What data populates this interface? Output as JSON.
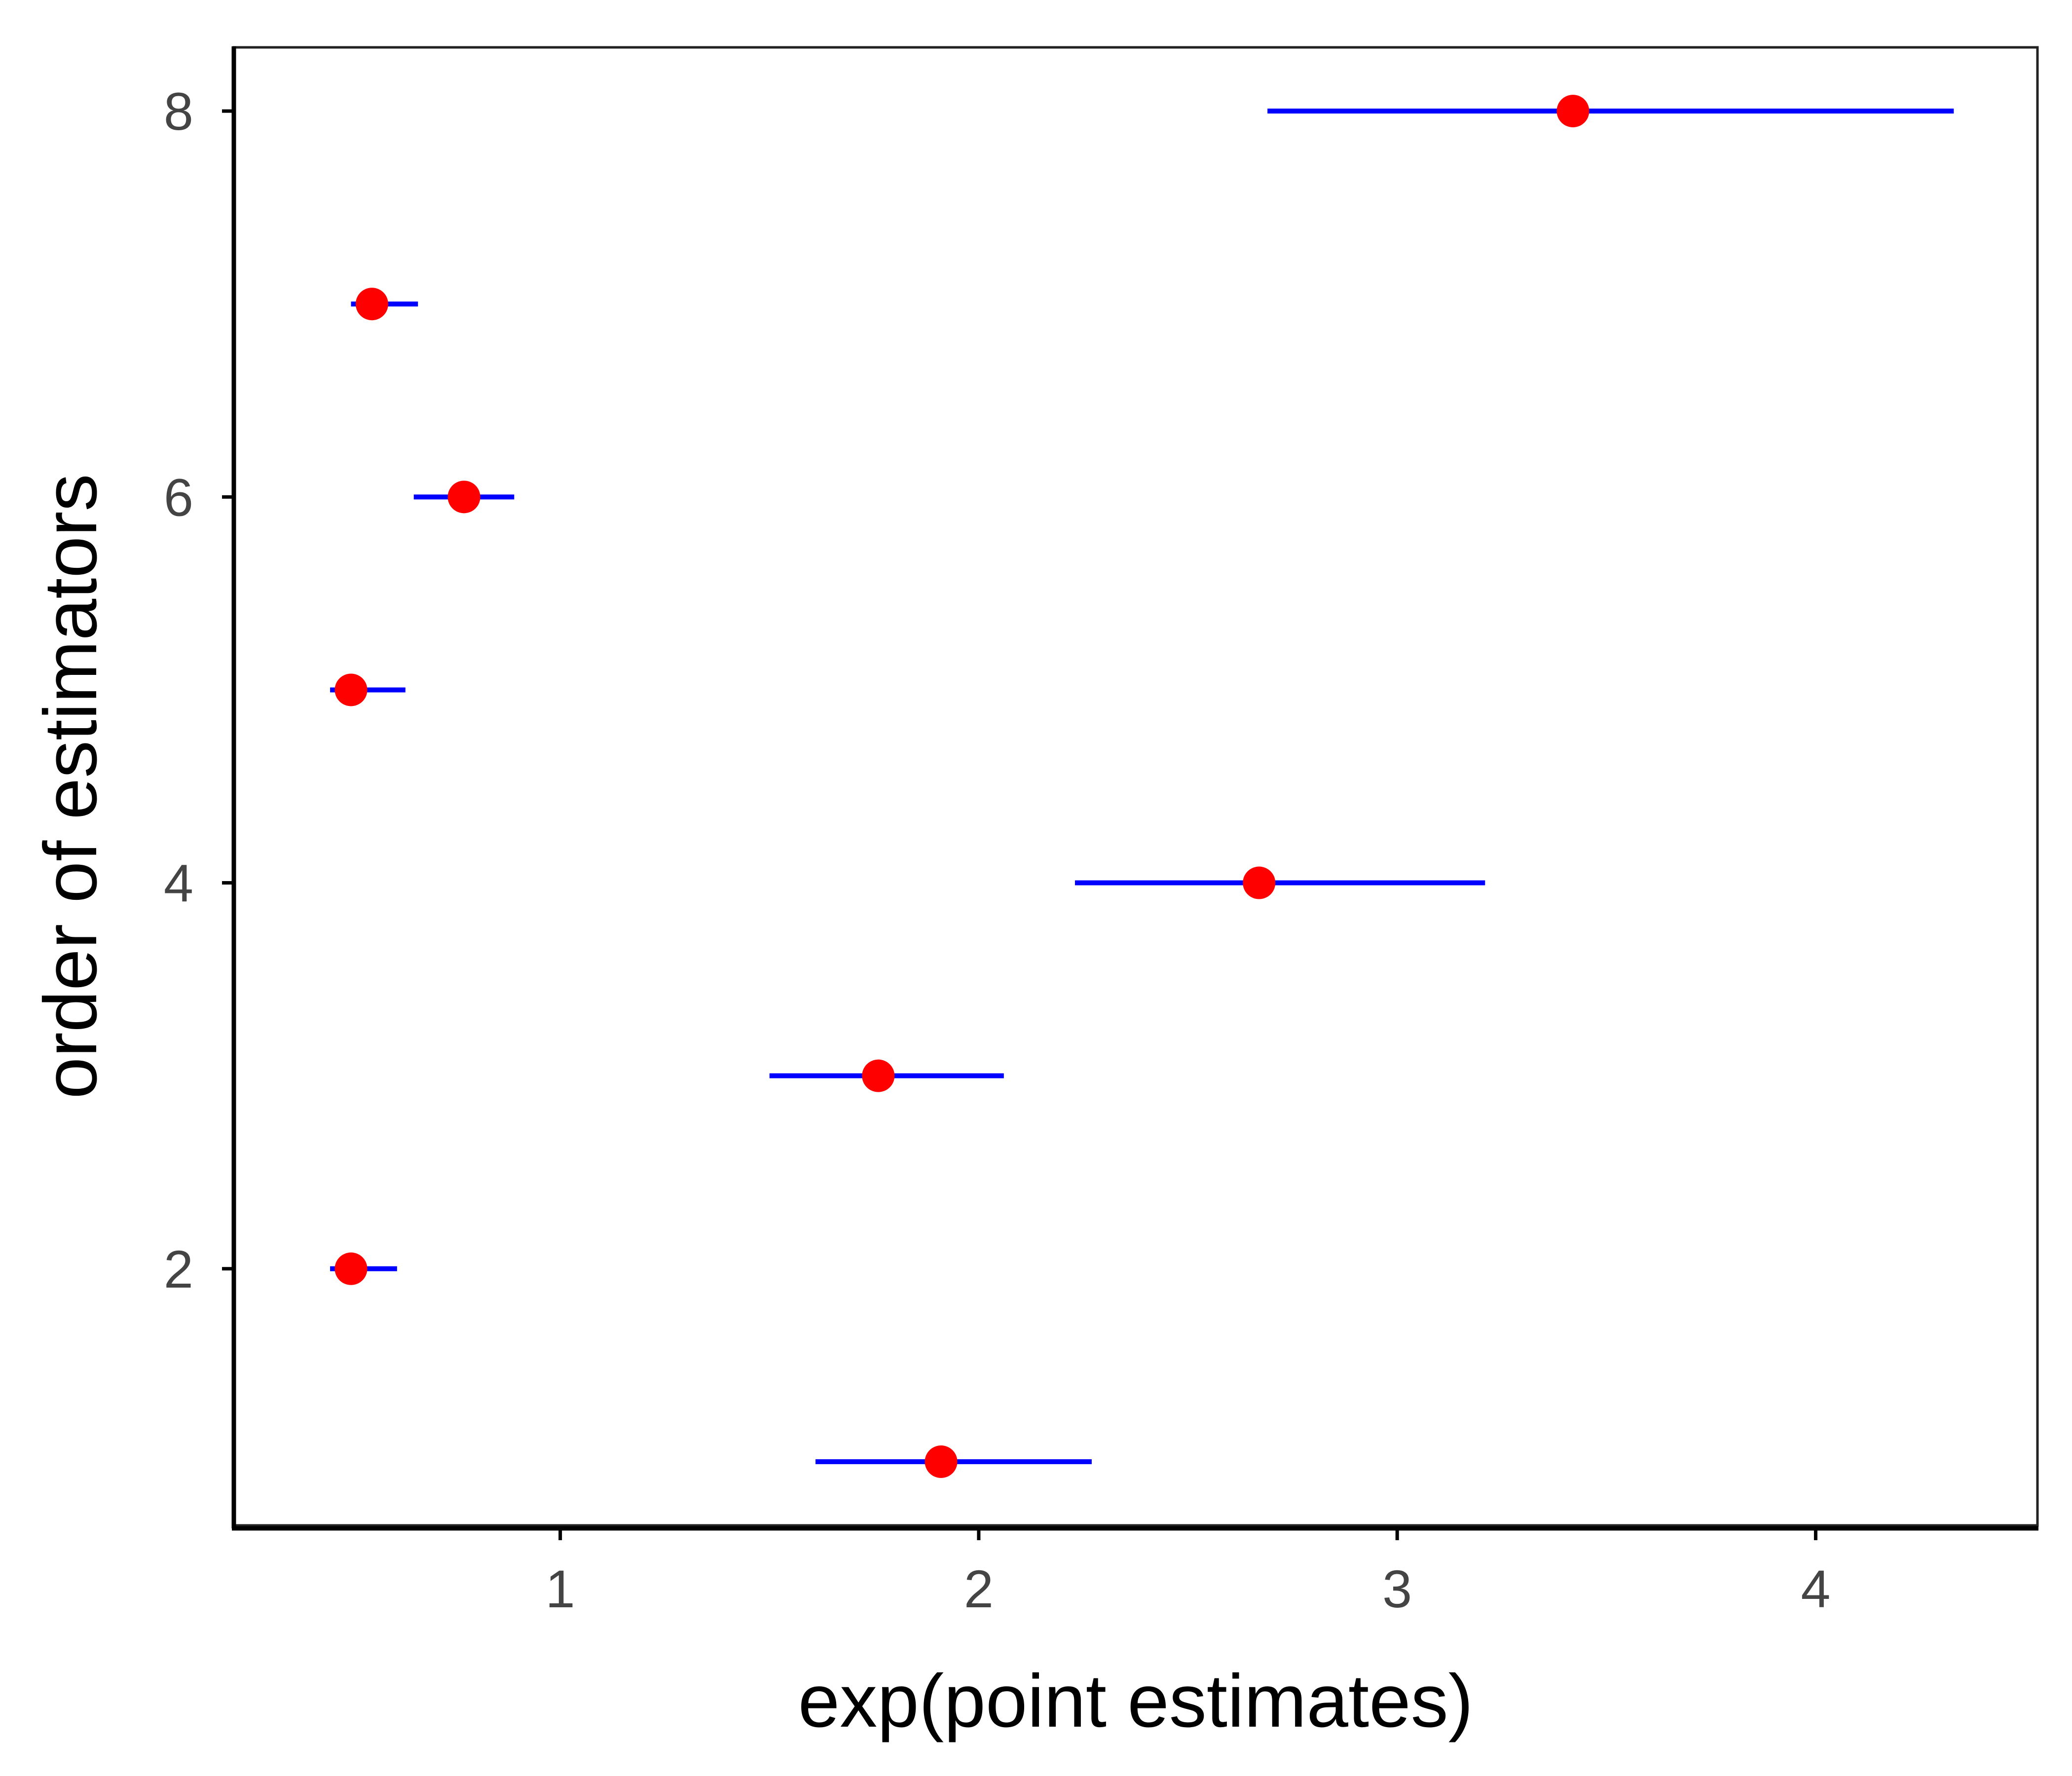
{
  "chart_data": {
    "type": "scatter",
    "title": "",
    "xlabel": "exp(point estimates)",
    "ylabel": "order of estimators",
    "xlim": [
      0.22,
      4.53
    ],
    "ylim": [
      0.67,
      8.33
    ],
    "xticks": [
      1,
      2,
      3,
      4
    ],
    "yticks": [
      2,
      4,
      6,
      8
    ],
    "grid": false,
    "legend": "none",
    "colors": {
      "point": "#ff0000",
      "interval": "#0000ff",
      "axis": "#000000",
      "tick_label": "#444444"
    },
    "points": [
      {
        "y": 1,
        "estimate": 1.91,
        "lower": 1.61,
        "upper": 2.27
      },
      {
        "y": 2,
        "estimate": 0.5,
        "lower": 0.45,
        "upper": 0.61
      },
      {
        "y": 3,
        "estimate": 1.76,
        "lower": 1.5,
        "upper": 2.06
      },
      {
        "y": 4,
        "estimate": 2.67,
        "lower": 2.23,
        "upper": 3.21
      },
      {
        "y": 5,
        "estimate": 0.5,
        "lower": 0.45,
        "upper": 0.63
      },
      {
        "y": 6,
        "estimate": 0.77,
        "lower": 0.65,
        "upper": 0.89
      },
      {
        "y": 7,
        "estimate": 0.55,
        "lower": 0.5,
        "upper": 0.66
      },
      {
        "y": 8,
        "estimate": 3.42,
        "lower": 2.69,
        "upper": 4.33
      }
    ]
  }
}
